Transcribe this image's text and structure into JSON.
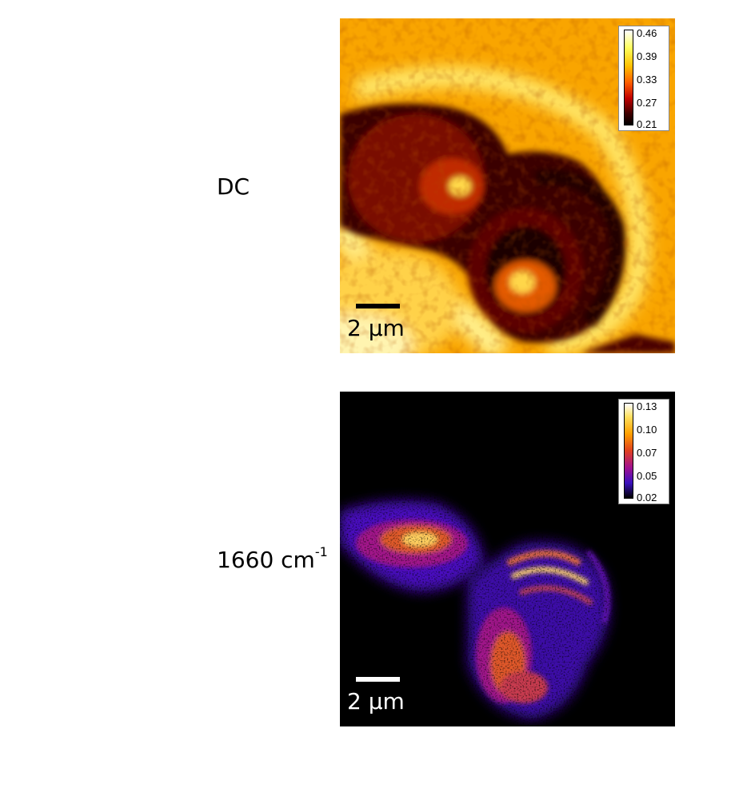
{
  "rows": [
    {
      "label": "DC",
      "label_sup": "",
      "colormap": "hot",
      "colorbar": {
        "ticks": [
          "0.46",
          "0.39",
          "0.33",
          "0.27",
          "0.21"
        ],
        "min": 0.21,
        "max": 0.46
      },
      "scalebar": {
        "label": "2 µm",
        "color": "#000000"
      }
    },
    {
      "label": "1660 cm",
      "label_sup": "-1",
      "colormap": "fire",
      "colorbar": {
        "ticks": [
          "0.13",
          "0.10",
          "0.07",
          "0.05",
          "0.02"
        ],
        "min": 0.02,
        "max": 0.13
      },
      "scalebar": {
        "label": "2 µm",
        "color": "#ffffff"
      }
    }
  ]
}
